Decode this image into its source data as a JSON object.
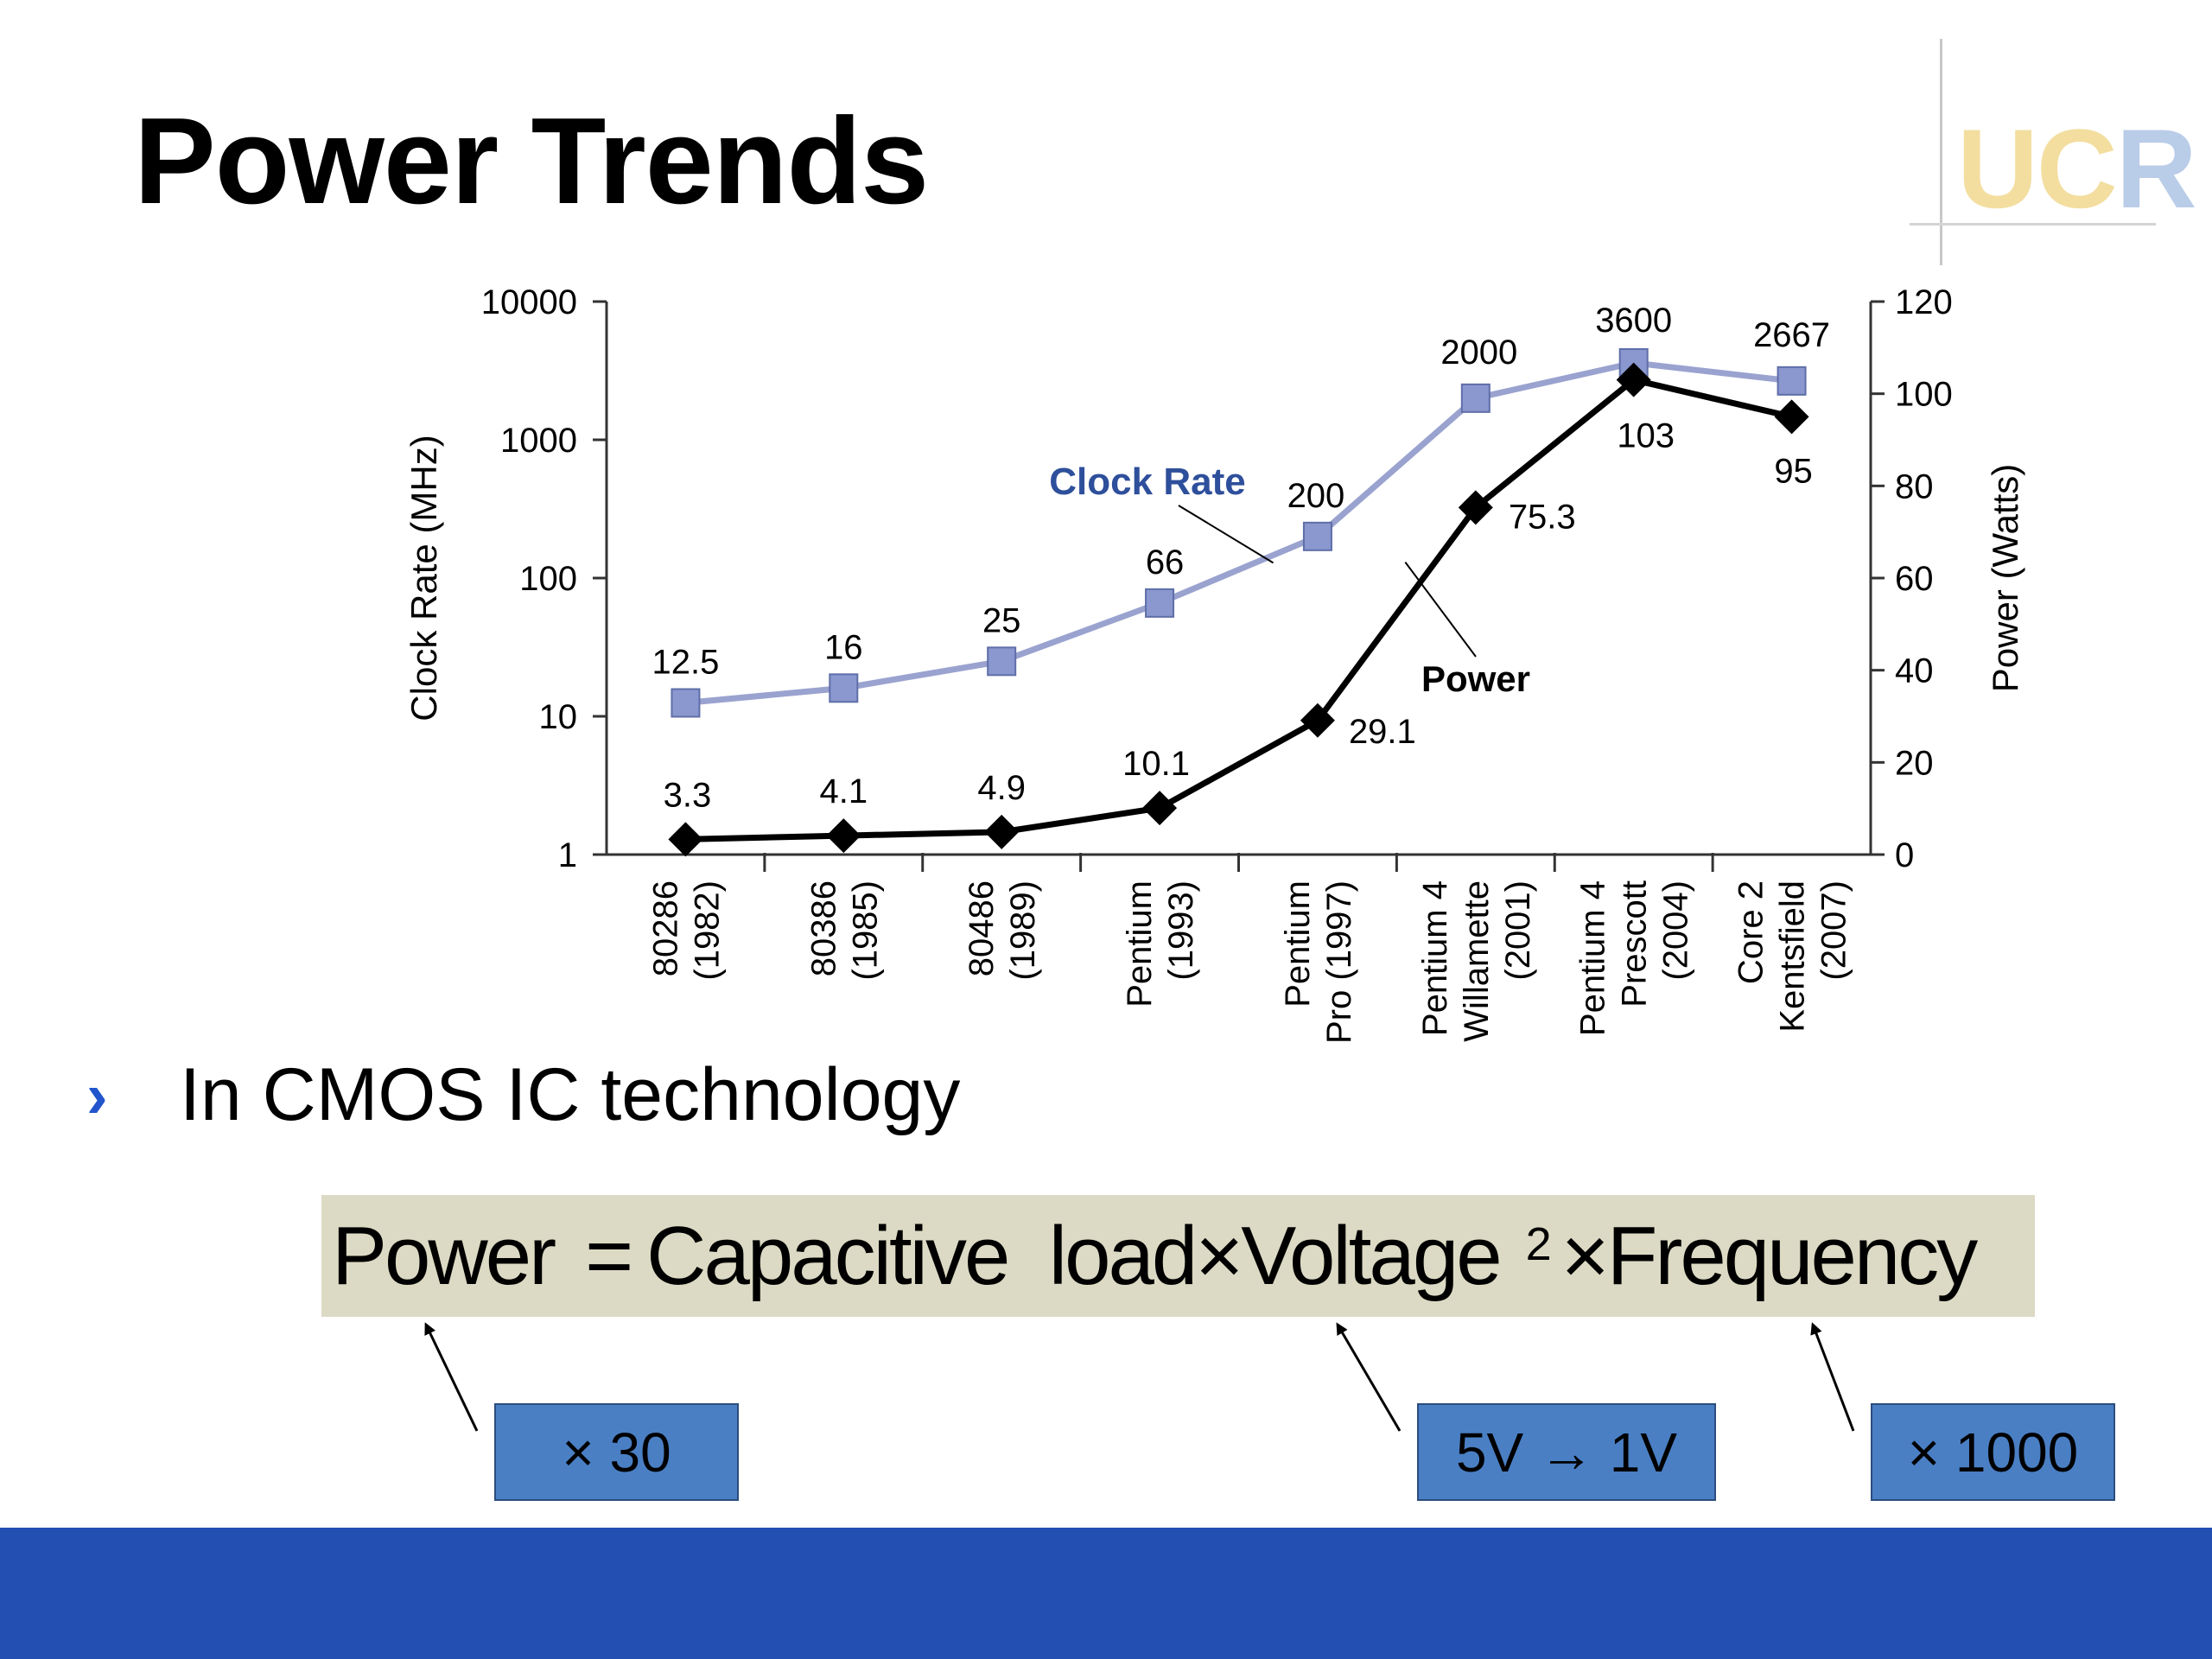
{
  "slide": {
    "title": "Power Trends",
    "logo_text_main": "UC",
    "logo_text_r": "R",
    "bullet_glyph": "›",
    "bullet_text": "In CMOS IC technology",
    "formula": {
      "power": "Power",
      "eq": "=",
      "cap": "Capacitive  load",
      "times1": "×",
      "voltage": "Voltage",
      "exp": "2",
      "times2": "×",
      "freq": "Frequency"
    },
    "notes": {
      "cap_factor": "× 30",
      "voltage_change": "5V → 1V",
      "freq_factor": "× 1000"
    },
    "colors": {
      "clock_line": "#9aa3cf",
      "clock_marker": "#8a98cf",
      "power_line": "#000000",
      "clock_label": "#2e4f9b",
      "formula_bg": "#dcdac4",
      "note_bg": "#4a7fc4",
      "bottom_bar": "#234fb3"
    }
  },
  "chart_data": {
    "type": "line",
    "categories": [
      [
        "80286",
        "(1982)"
      ],
      [
        "80386",
        "(1985)"
      ],
      [
        "80486",
        "(1989)"
      ],
      [
        "Pentium",
        "(1993)"
      ],
      [
        "Pentium",
        "Pro (1997)"
      ],
      [
        "Pentium 4",
        "Willamette",
        "(2001)"
      ],
      [
        "Pentium 4",
        "Prescott",
        "(2004)"
      ],
      [
        "Core 2",
        "Kentsfield",
        "(2007)"
      ]
    ],
    "series": [
      {
        "name": "Clock Rate",
        "axis": "left",
        "marker": "square",
        "values": [
          12.5,
          16,
          25,
          66,
          200,
          2000,
          3600,
          2667
        ],
        "labels": [
          "12.5",
          "16",
          "25",
          "66",
          "200",
          "2000",
          "3600",
          "2667"
        ]
      },
      {
        "name": "Power",
        "axis": "right",
        "marker": "diamond",
        "values": [
          3.3,
          4.1,
          4.9,
          10.1,
          29.1,
          75.3,
          103,
          95
        ],
        "labels": [
          "3.3",
          "4.1",
          "4.9",
          "10.1",
          "29.1",
          "75.3",
          "103",
          "95"
        ]
      }
    ],
    "ylabel_left": "Clock Rate (MHz)",
    "ylabel_right": "Power (Watts)",
    "y_left_scale": "log",
    "y_left_ticks": [
      1,
      10,
      100,
      1000,
      10000
    ],
    "y_left_tick_labels": [
      "1",
      "10",
      "100",
      "1000",
      "10000"
    ],
    "y_right_ticks": [
      0,
      20,
      40,
      60,
      80,
      100,
      120
    ],
    "y_right_tick_labels": [
      "0",
      "20",
      "40",
      "60",
      "80",
      "100",
      "120"
    ],
    "ylim_left": [
      1,
      10000
    ],
    "ylim_right": [
      0,
      120
    ],
    "grid": false
  }
}
